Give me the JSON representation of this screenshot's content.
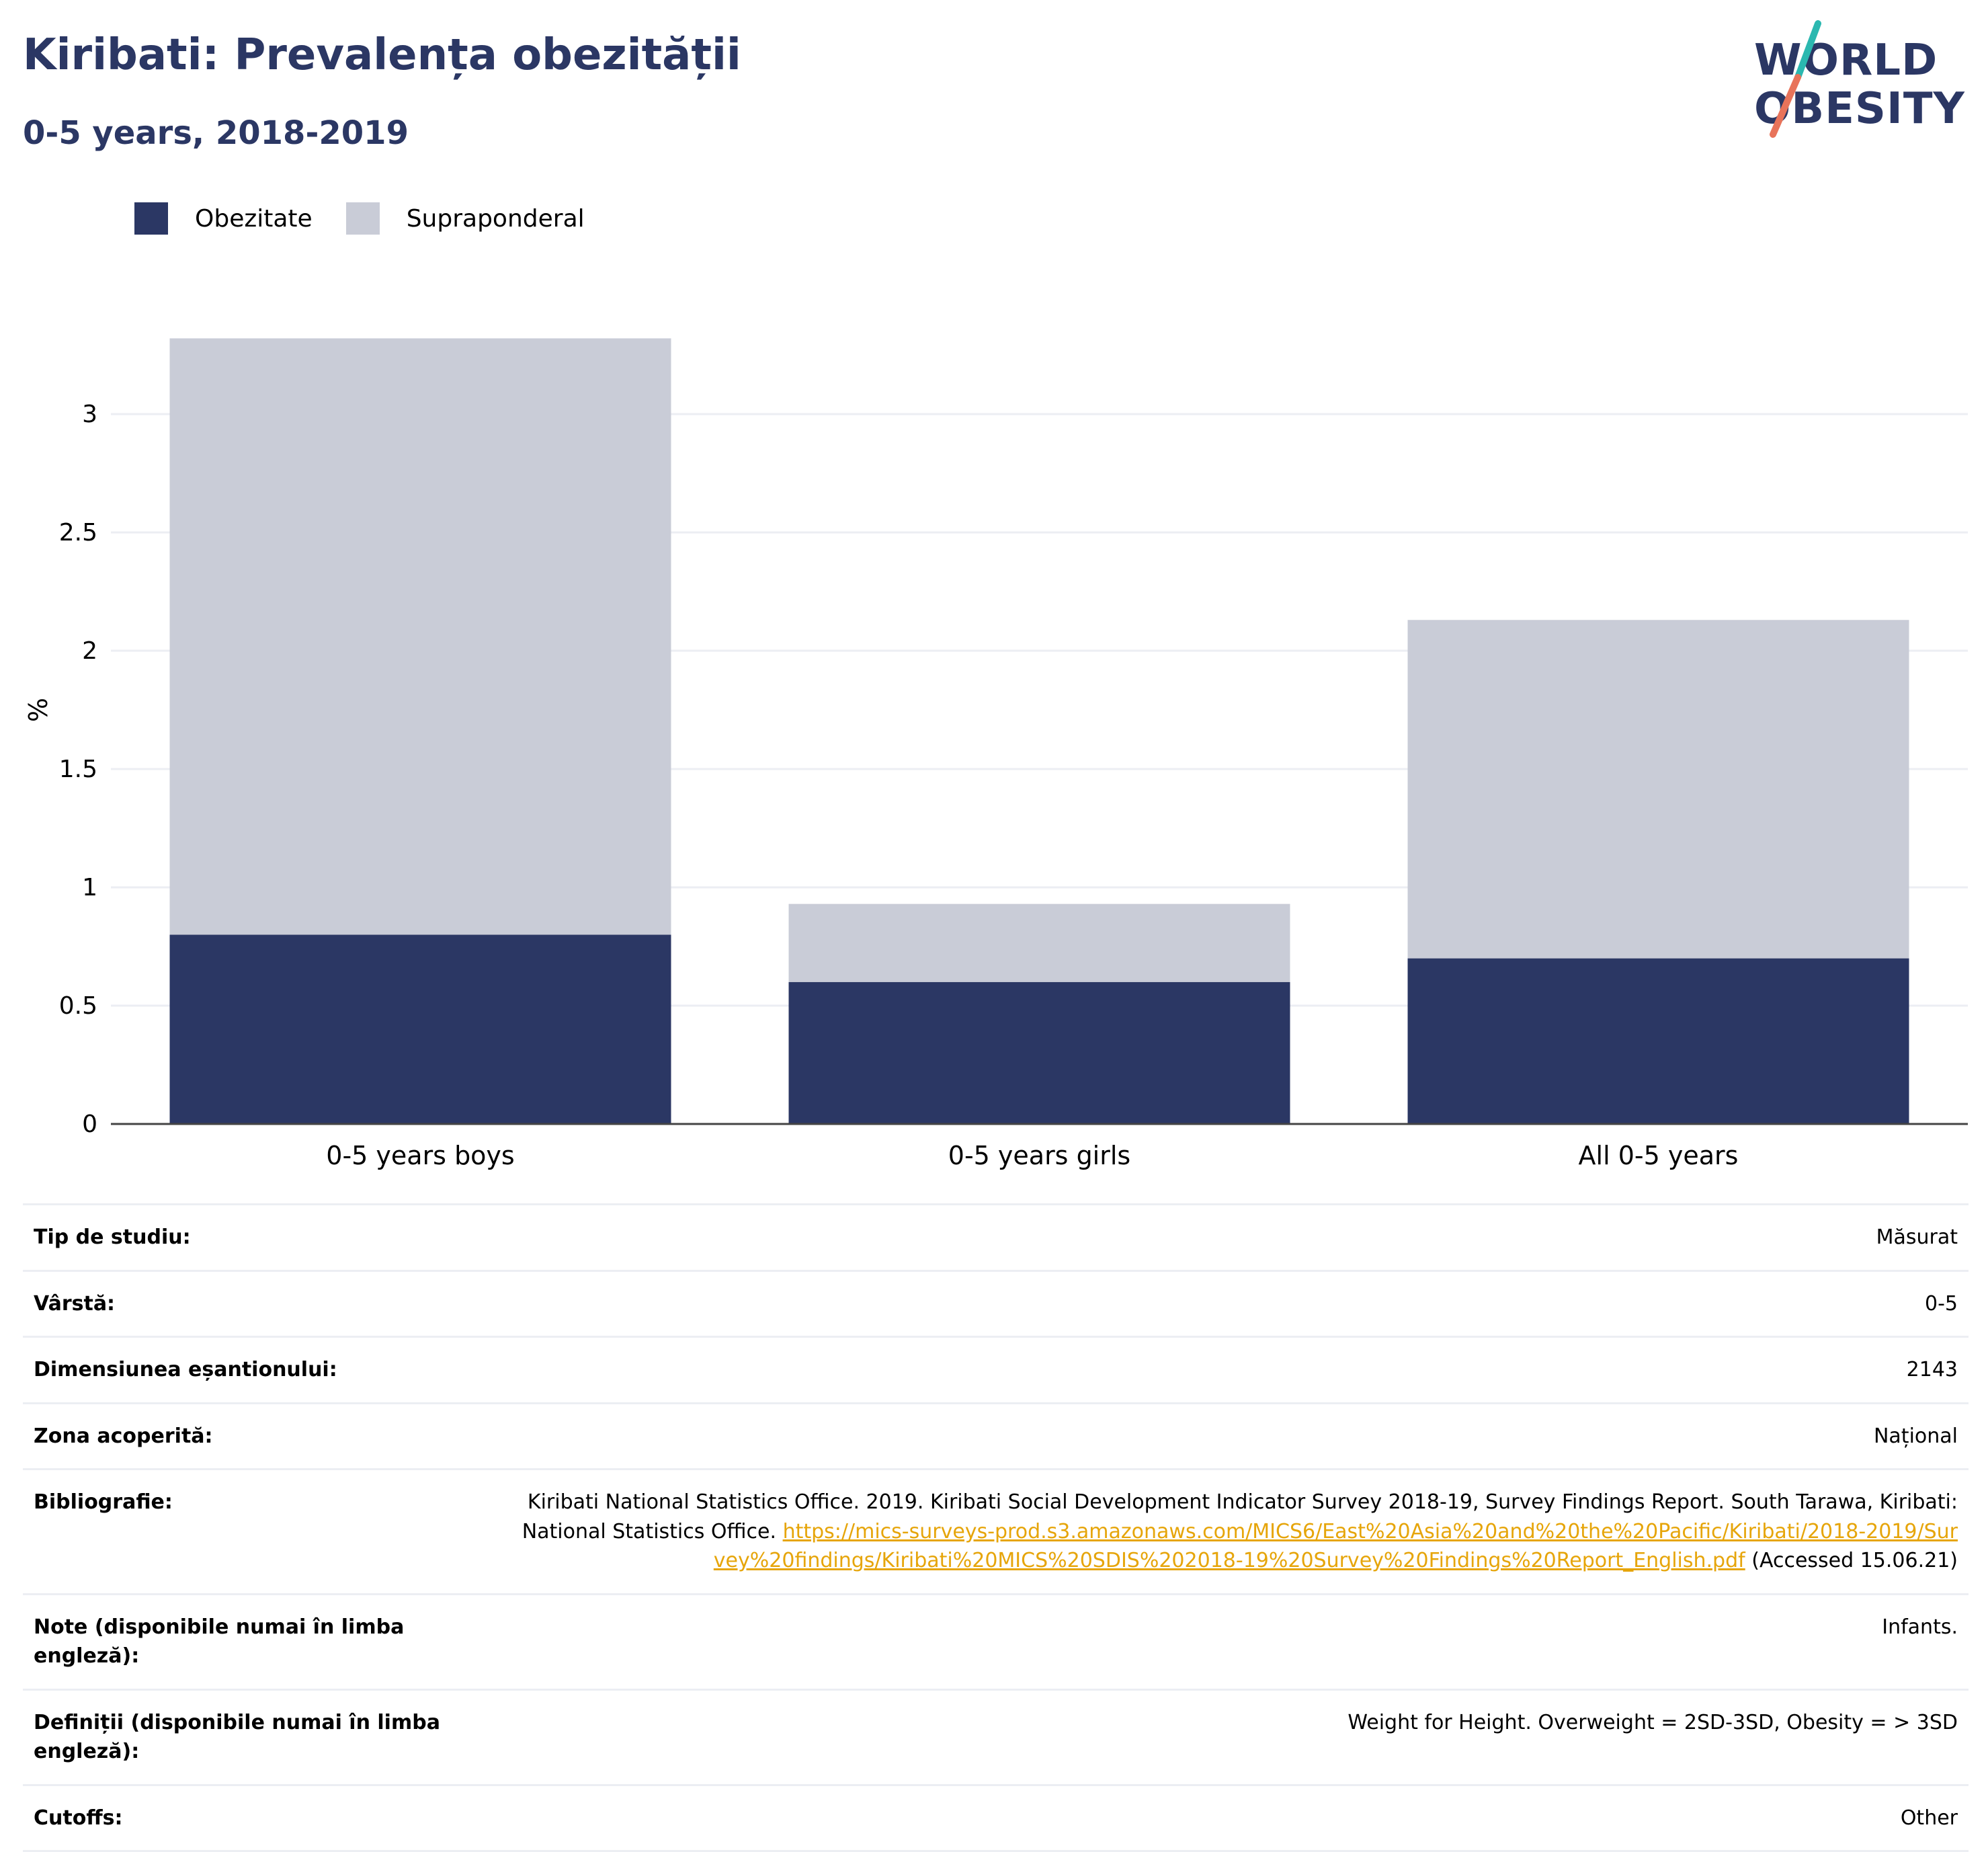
{
  "header": {
    "title": "Kiribati: Prevalența obezității",
    "subtitle": "0-5 years, 2018-2019"
  },
  "logo": {
    "line1": "WORLD",
    "line2": "OBESITY",
    "accent_colors": [
      "#2bb8b0",
      "#e8735a"
    ]
  },
  "legend": {
    "items": [
      {
        "label": "Obezitate",
        "color": "#2b3764"
      },
      {
        "label": "Supraponderal",
        "color": "#c9ccd7"
      }
    ]
  },
  "chart_data": {
    "type": "bar",
    "stacked": true,
    "categories": [
      "0-5 years boys",
      "0-5 years girls",
      "All 0-5 years"
    ],
    "series": [
      {
        "name": "Obezitate",
        "values": [
          0.8,
          0.6,
          0.7
        ],
        "color": "#2b3764"
      },
      {
        "name": "Supraponderal",
        "values": [
          2.52,
          0.33,
          1.43
        ],
        "color": "#c9ccd7"
      }
    ],
    "ylabel": "%",
    "ylim": [
      0,
      3.5
    ],
    "yticks": [
      "0",
      "0.5",
      "1",
      "1.5",
      "2",
      "2.5",
      "3"
    ],
    "grid": true
  },
  "info": {
    "rows": [
      {
        "key": "Tip de studiu:",
        "value": "Măsurat"
      },
      {
        "key": "Vârstă:",
        "value": "0-5"
      },
      {
        "key": "Dimensiunea eșantionului:",
        "value": "2143"
      },
      {
        "key": "Zona acoperită:",
        "value": "Național"
      }
    ],
    "bibliography": {
      "key": "Bibliografie:",
      "text": "Kiribati National Statistics Office. 2019. Kiribati Social Development Indicator Survey 2018-19, Survey Findings Report. South Tarawa, Kiribati: National Statistics Office.",
      "url": "https://mics-surveys-prod.s3.amazonaws.com/MICS6/East%20Asia%20and%20the%20Pacific/Kiribati/2018-2019/Survey%20findings/Kiribati%20MICS%20SDIS%202018-19%20Survey%20Findings%20Report_English.pdf",
      "suffix": "(Accessed 15.06.21)"
    },
    "rows2": [
      {
        "key": "Note (disponibile numai în limba engleză):",
        "value": "Infants."
      },
      {
        "key": "Definiții (disponibile numai în limba engleză):",
        "value": "Weight for Height. Overweight = 2SD-3SD, Obesity = > 3SD"
      },
      {
        "key": "Cutoffs:",
        "value": "Other"
      }
    ]
  }
}
